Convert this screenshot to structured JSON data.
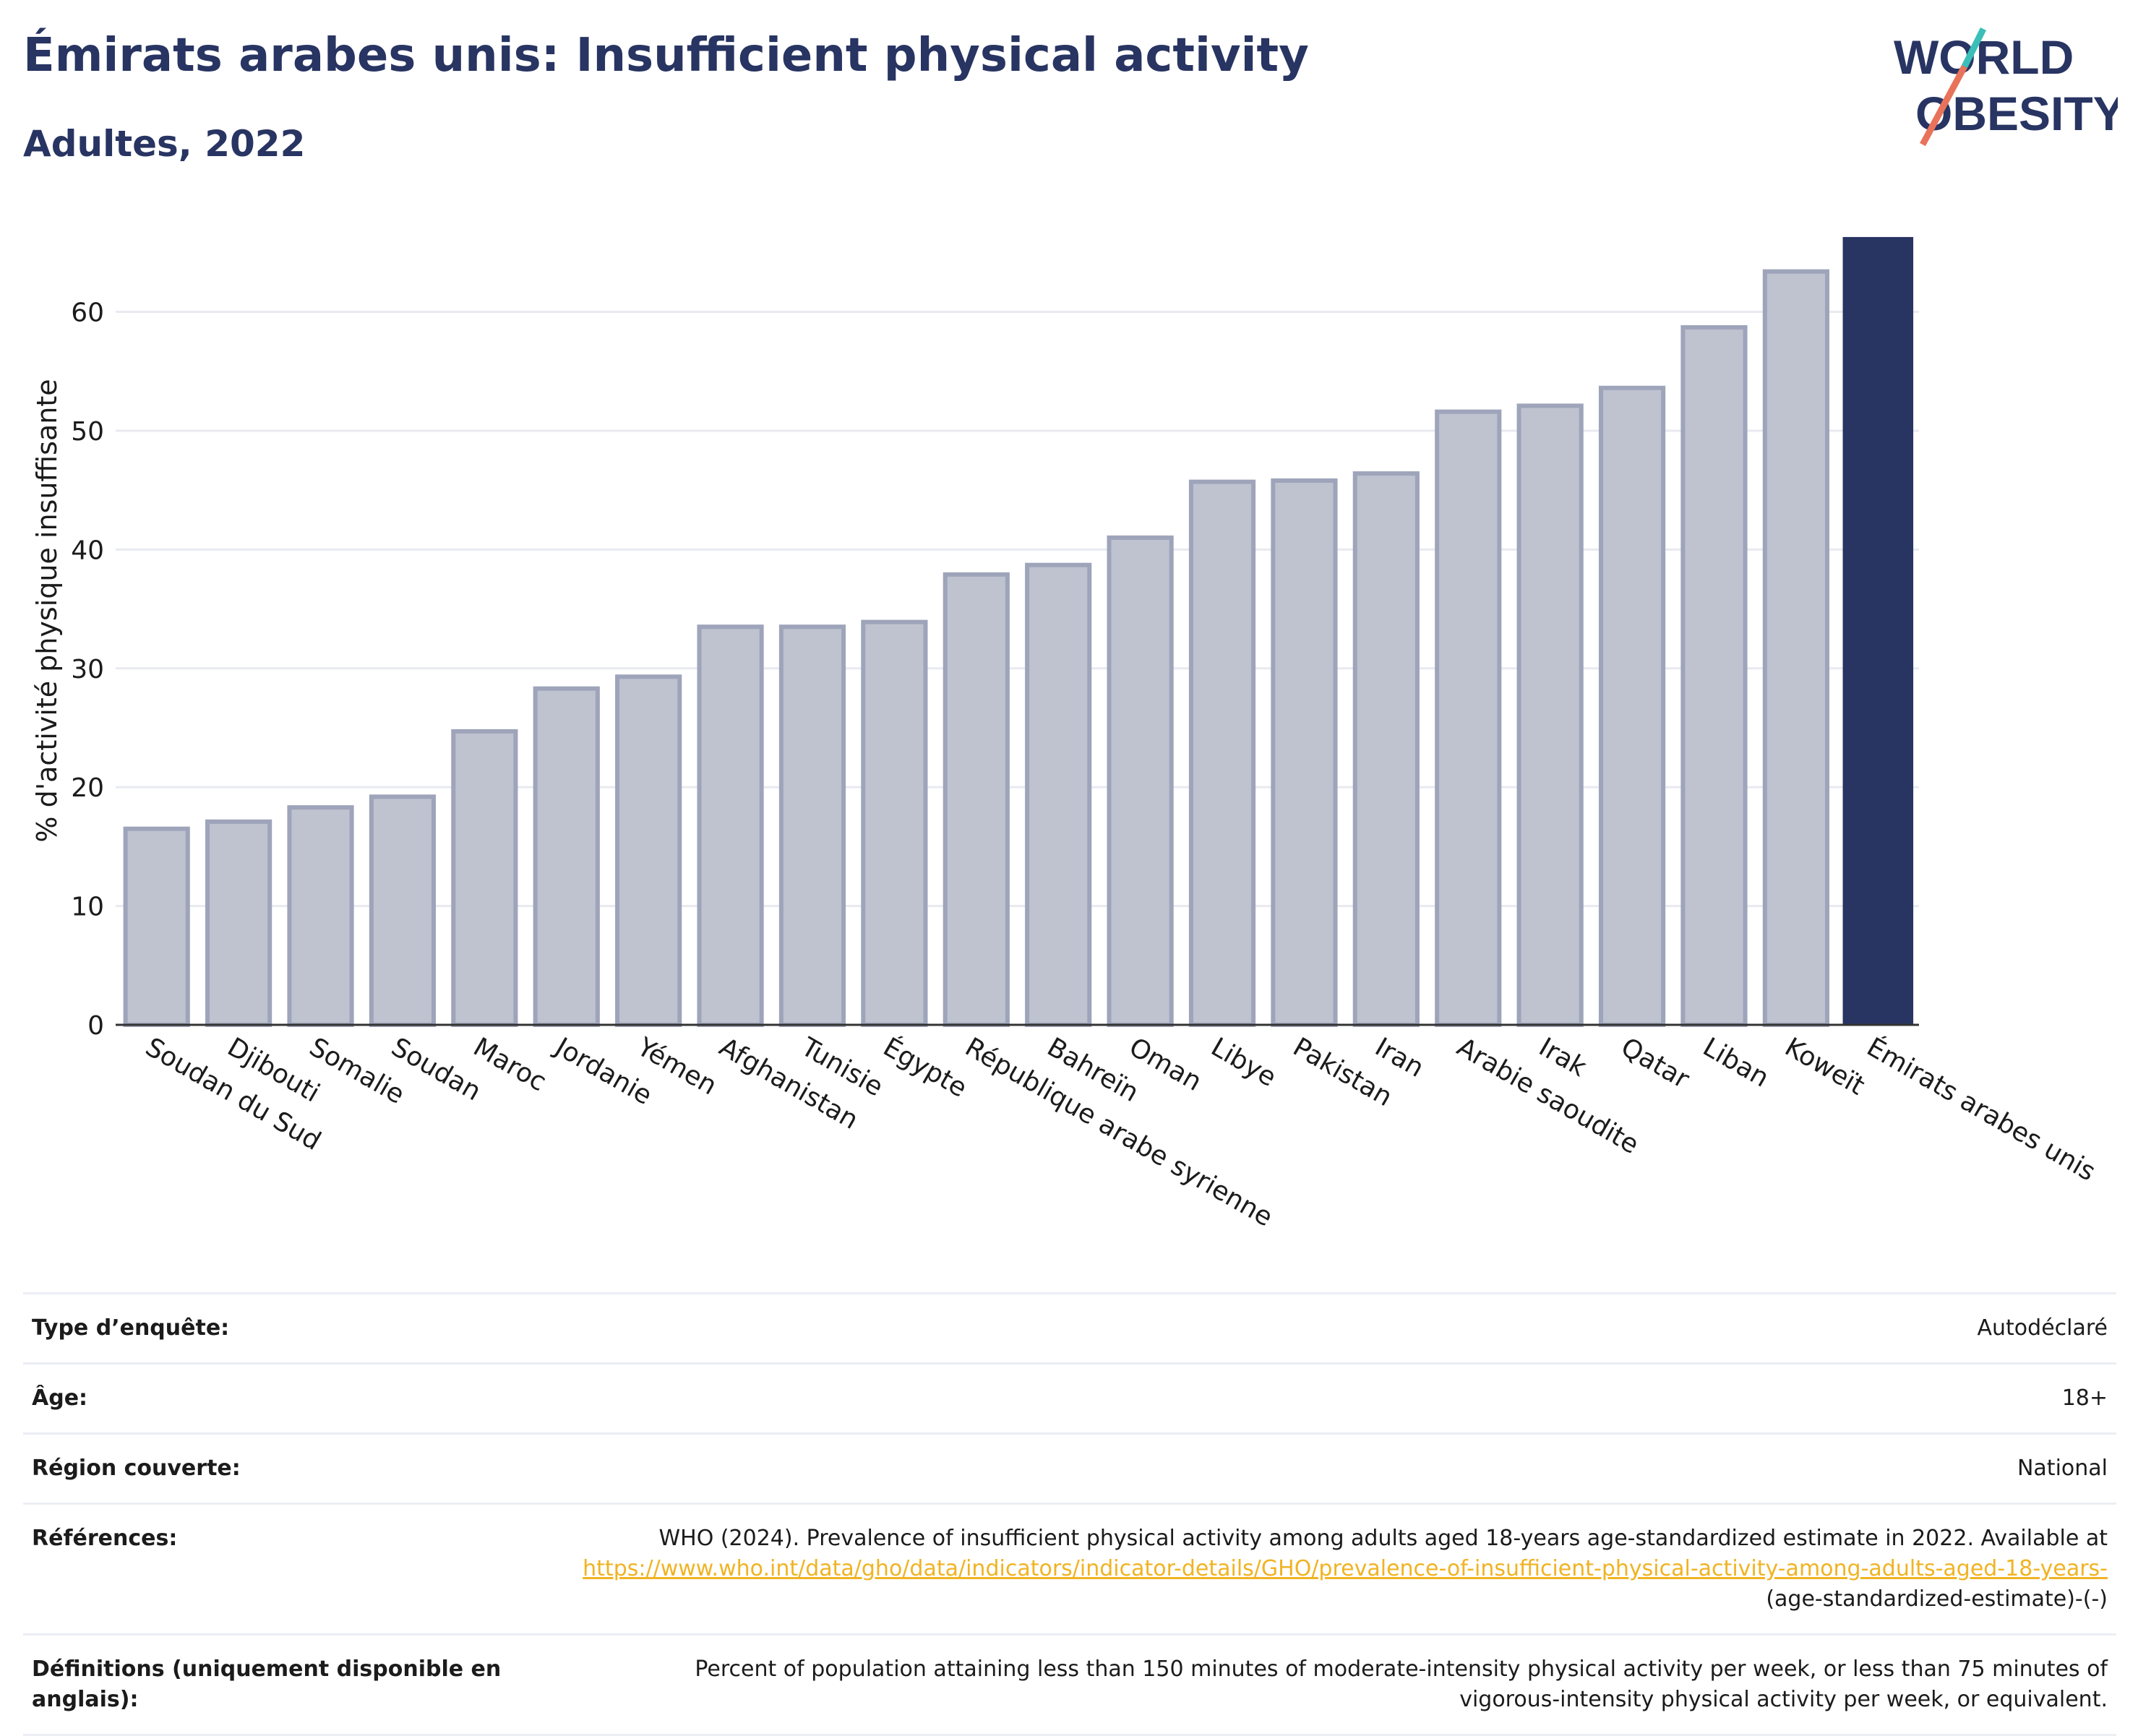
{
  "header": {
    "title": "Émirats arabes unis: Insufficient physical activity",
    "subtitle": "Adultes, 2022"
  },
  "logo": {
    "line1": "WORLD",
    "line2": "OBESITY",
    "colors": [
      "#283462",
      "#e8735a",
      "#3bbfb8"
    ]
  },
  "chart_data": {
    "type": "bar",
    "ylabel": "% d'activité physique insuffisante",
    "ylim": [
      0,
      68
    ],
    "yticks": [
      0,
      10,
      20,
      30,
      40,
      50,
      60
    ],
    "grid": true,
    "categories": [
      "Soudan du Sud",
      "Djibouti",
      "Somalie",
      "Soudan",
      "Maroc",
      "Jordanie",
      "Yémen",
      "Afghanistan",
      "Tunisie",
      "Égypte",
      "République arabe syrienne",
      "Bahreïn",
      "Oman",
      "Libye",
      "Pakistan",
      "Iran",
      "Arabie saoudite",
      "Irak",
      "Qatar",
      "Liban",
      "Koweït",
      "Émirats arabes unis"
    ],
    "values": [
      16.5,
      17.1,
      18.3,
      19.2,
      24.7,
      28.3,
      29.3,
      33.5,
      33.5,
      33.9,
      37.9,
      38.7,
      41.0,
      45.7,
      45.8,
      46.4,
      51.6,
      52.1,
      53.6,
      58.7,
      63.4,
      66.3
    ],
    "highlight": "Émirats arabes unis",
    "colors": {
      "bar": "#bfc2cf",
      "bar_border": "#9ea4ba",
      "highlight": "#283462"
    }
  },
  "meta": {
    "survey_label": "Type d’enquête:",
    "survey_value": "Autodéclaré",
    "age_label": "Âge:",
    "age_value": "18+",
    "region_label": "Région couverte:",
    "region_value": "National",
    "refs_label": "Références:",
    "refs_text": "WHO (2024). Prevalence of insufficient physical activity among adults aged 18-years age-standardized estimate in 2022. Available at",
    "refs_link": "https://www.who.int/data/gho/data/indicators/indicator-details/GHO/prevalence-of-insufficient-physical-activity-among-adults-aged-18-years-",
    "refs_tail": "(age-standardized-estimate)-(-)",
    "defs_label": "Définitions (uniquement disponible en anglais):",
    "defs_text": "Percent of population attaining less than 150 minutes of moderate-intensity physical activity per week, or less than 75 minutes of vigorous-intensity physical activity per week, or equivalent."
  }
}
